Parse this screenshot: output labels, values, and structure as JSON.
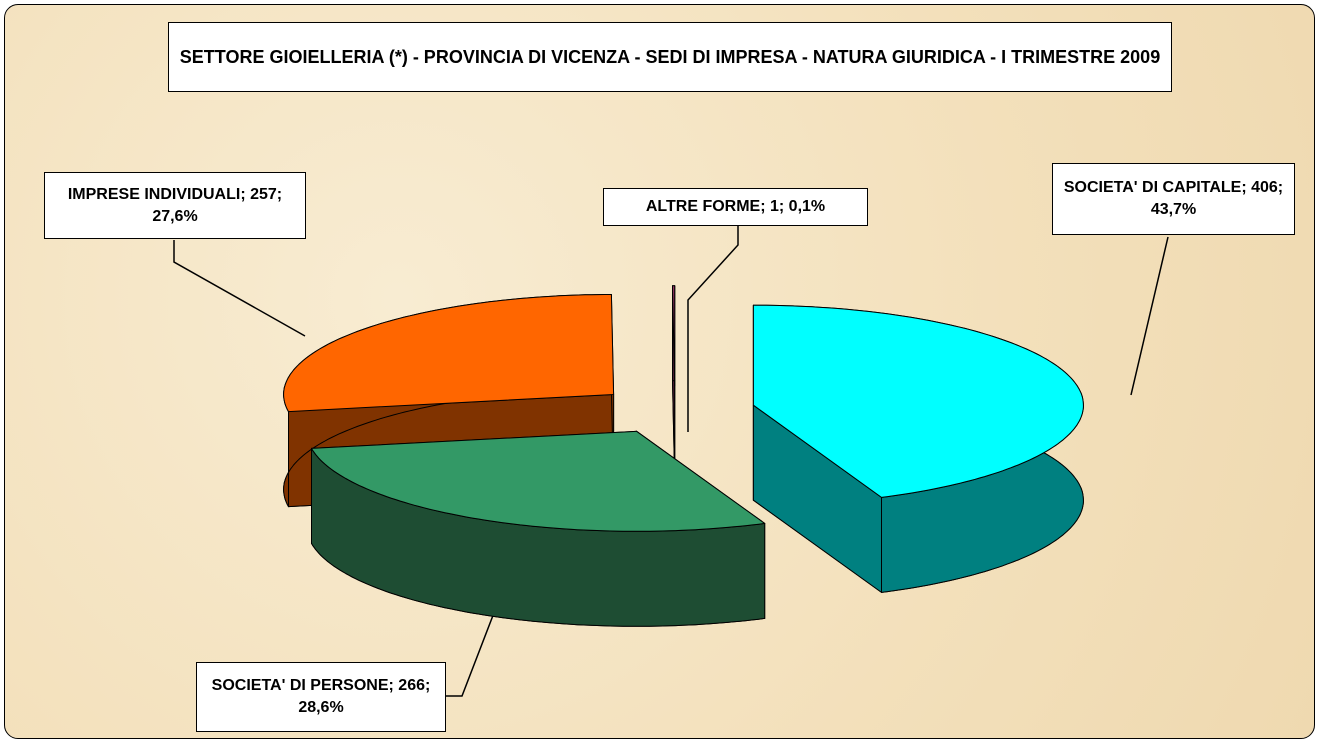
{
  "chart_data": {
    "type": "pie3d",
    "title": "SETTORE GIOIELLERIA (*) - PROVINCIA DI VICENZA - SEDI DI IMPRESA - NATURA GIURIDICA - I TRIMESTRE 2009",
    "values": [
      406,
      266,
      257,
      1
    ],
    "labels": [
      "SOCIETA' DI CAPITALE; 406; 43,7%",
      "SOCIETA' DI PERSONE; 266; 28,6%",
      "IMPRESE INDIVIDUALI; 257; 27,6%",
      "ALTRE FORME; 1; 0,1%"
    ],
    "colors": [
      "#00ffff",
      "#339966",
      "#ff6600",
      "#993366"
    ],
    "side_colors": [
      "#008080",
      "#1e4d33",
      "#803300",
      "#4d1a33"
    ]
  }
}
